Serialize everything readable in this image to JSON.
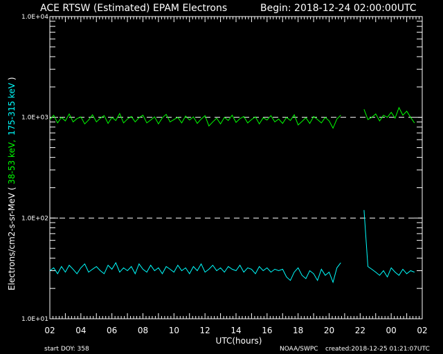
{
  "chart_data": {
    "type": "line",
    "title": "ACE RTSW (Estimated) EPAM Electrons",
    "begin_label": "Begin: 2018-12-24 02:00:00UTC",
    "xlabel": "UTC(hours)",
    "ylabel": {
      "prefix": "Electrons/cm2-s-sr-MeV ( ",
      "series1": "38-53 keV,",
      "series2": "175-315 keV",
      "suffix": " )"
    },
    "x_tick_labels": [
      "02",
      "04",
      "06",
      "08",
      "10",
      "12",
      "14",
      "16",
      "18",
      "20",
      "22",
      "00",
      "02"
    ],
    "y_scale": "log",
    "ylim": [
      10,
      10000
    ],
    "y_tick_labels": [
      "1.0E+04",
      "1.0E+03",
      "1.0E+02",
      "1.0E+01"
    ],
    "threshold_lines": [
      1000,
      100
    ],
    "grid": false,
    "footer": {
      "start_doy": "start DOY:  358",
      "source": "NOAA/SWPC",
      "created": "created:2018-12-25 01:21:07UTC"
    },
    "time_start": "2018-12-24 02:00",
    "time_step_minutes": 15,
    "series": [
      {
        "name": "38-53 keV",
        "color": "#00ff00",
        "values": [
          950,
          1050,
          880,
          1000,
          920,
          1080,
          900,
          970,
          1010,
          860,
          940,
          1060,
          900,
          980,
          1040,
          870,
          1000,
          930,
          1090,
          880,
          960,
          1020,
          900,
          990,
          1050,
          880,
          940,
          1010,
          860,
          990,
          1070,
          900,
          950,
          1000,
          880,
          1030,
          940,
          1010,
          870,
          960,
          1040,
          820,
          900,
          980,
          860,
          1000,
          930,
          1050,
          890,
          970,
          1020,
          880,
          950,
          1010,
          860,
          990,
          940,
          1040,
          900,
          960,
          870,
          1000,
          930,
          1060,
          840,
          910,
          990,
          870,
          1020,
          950,
          880,
          1000,
          920,
          780,
          960,
          1050,
          null,
          null,
          null,
          null,
          null,
          1200,
          950,
          1000,
          1080,
          920,
          1050,
          1000,
          1120,
          980,
          1250,
          1050,
          1150,
          1000,
          880
        ]
      },
      {
        "name": "175-315 keV",
        "color": "#00ffff",
        "values": [
          30,
          32,
          28,
          33,
          29,
          34,
          31,
          28,
          32,
          35,
          29,
          31,
          33,
          30,
          28,
          34,
          31,
          36,
          29,
          32,
          30,
          33,
          28,
          35,
          31,
          29,
          34,
          30,
          32,
          28,
          33,
          31,
          29,
          34,
          30,
          32,
          28,
          33,
          30,
          35,
          29,
          31,
          34,
          30,
          32,
          29,
          33,
          31,
          30,
          34,
          29,
          32,
          31,
          28,
          33,
          30,
          32,
          29,
          31,
          30,
          31,
          26,
          24,
          29,
          32,
          27,
          25,
          30,
          28,
          24,
          31,
          27,
          29,
          23,
          32,
          36,
          null,
          null,
          null,
          null,
          null,
          120,
          33,
          31,
          29,
          27,
          30,
          26,
          32,
          29,
          27,
          31,
          28,
          30,
          29
        ]
      }
    ]
  }
}
